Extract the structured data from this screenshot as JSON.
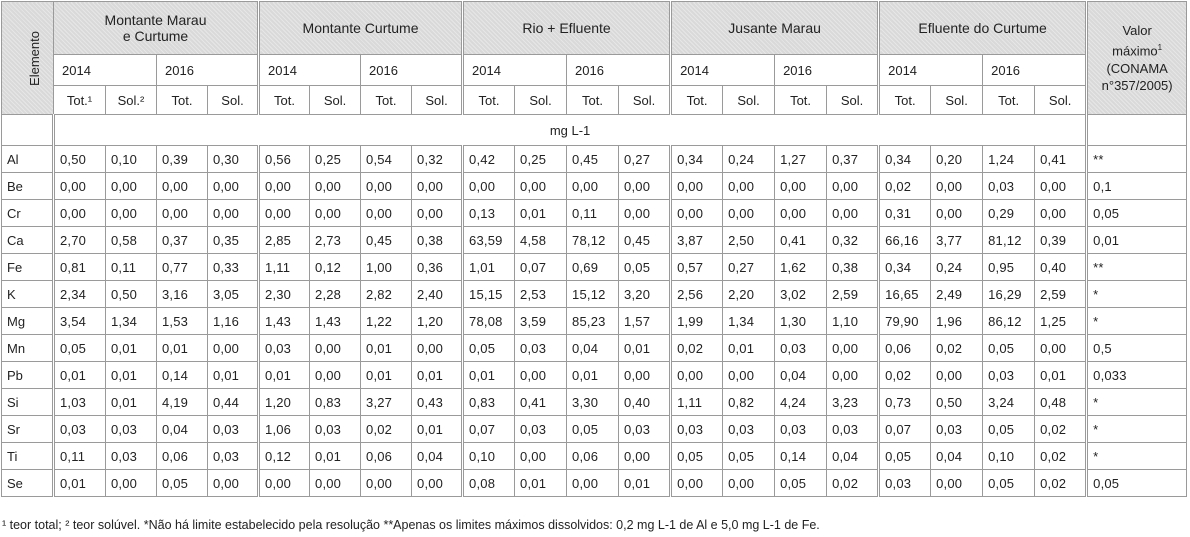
{
  "header": {
    "element": "Elemento",
    "groups": [
      {
        "l1": "Montante Marau",
        "l2": "e Curtume"
      },
      {
        "l1": "Montante Curtume"
      },
      {
        "l1": "Rio + Efluente"
      },
      {
        "l1": "Jusante Marau"
      },
      {
        "l1": "Efluente do Curtume"
      }
    ],
    "years": [
      "2014",
      "2016"
    ],
    "subs_first": [
      "Tot.¹",
      "Sol.²",
      "Tot.",
      "Sol."
    ],
    "subs": [
      "Tot.",
      "Sol.",
      "Tot.",
      "Sol."
    ],
    "max": {
      "l1": "Valor",
      "l2": "máximo",
      "sup": "1",
      "l3": "(CONAMA",
      "l4": "n°357/2005)"
    }
  },
  "unit": "mg L-1",
  "rows": [
    {
      "el": "Al",
      "v": [
        "0,50",
        "0,10",
        "0,39",
        "0,30",
        "0,56",
        "0,25",
        "0,54",
        "0,32",
        "0,42",
        "0,25",
        "0,45",
        "0,27",
        "0,34",
        "0,24",
        "1,27",
        "0,37",
        "0,34",
        "0,20",
        "1,24",
        "0,41"
      ],
      "max": "**"
    },
    {
      "el": "Be",
      "v": [
        "0,00",
        "0,00",
        "0,00",
        "0,00",
        "0,00",
        "0,00",
        "0,00",
        "0,00",
        "0,00",
        "0,00",
        "0,00",
        "0,00",
        "0,00",
        "0,00",
        "0,00",
        "0,00",
        "0,02",
        "0,00",
        "0,03",
        "0,00"
      ],
      "max": "0,1"
    },
    {
      "el": "Cr",
      "v": [
        "0,00",
        "0,00",
        "0,00",
        "0,00",
        "0,00",
        "0,00",
        "0,00",
        "0,00",
        "0,13",
        "0,01",
        "0,11",
        "0,00",
        "0,00",
        "0,00",
        "0,00",
        "0,00",
        "0,31",
        "0,00",
        "0,29",
        "0,00"
      ],
      "max": "0,05"
    },
    {
      "el": "Ca",
      "v": [
        "2,70",
        "0,58",
        "0,37",
        "0,35",
        "2,85",
        "2,73",
        "0,45",
        "0,38",
        "63,59",
        "4,58",
        "78,12",
        "0,45",
        "3,87",
        "2,50",
        "0,41",
        "0,32",
        "66,16",
        "3,77",
        "81,12",
        "0,39"
      ],
      "max": "0,01"
    },
    {
      "el": "Fe",
      "v": [
        "0,81",
        "0,11",
        "0,77",
        "0,33",
        "1,11",
        "0,12",
        "1,00",
        "0,36",
        "1,01",
        "0,07",
        "0,69",
        "0,05",
        "0,57",
        "0,27",
        "1,62",
        "0,38",
        "0,34",
        "0,24",
        "0,95",
        "0,40"
      ],
      "max": "**"
    },
    {
      "el": "K",
      "v": [
        "2,34",
        "0,50",
        "3,16",
        "3,05",
        "2,30",
        "2,28",
        "2,82",
        "2,40",
        "15,15",
        "2,53",
        "15,12",
        "3,20",
        "2,56",
        "2,20",
        "3,02",
        "2,59",
        "16,65",
        "2,49",
        "16,29",
        "2,59"
      ],
      "max": "*"
    },
    {
      "el": "Mg",
      "v": [
        "3,54",
        "1,34",
        "1,53",
        "1,16",
        "1,43",
        "1,43",
        "1,22",
        "1,20",
        "78,08",
        "3,59",
        "85,23",
        "1,57",
        "1,99",
        "1,34",
        "1,30",
        "1,10",
        "79,90",
        "1,96",
        "86,12",
        "1,25"
      ],
      "max": "*"
    },
    {
      "el": "Mn",
      "v": [
        "0,05",
        "0,01",
        "0,01",
        "0,00",
        "0,03",
        "0,00",
        "0,01",
        "0,00",
        "0,05",
        "0,03",
        "0,04",
        "0,01",
        "0,02",
        "0,01",
        "0,03",
        "0,00",
        "0,06",
        "0,02",
        "0,05",
        "0,00"
      ],
      "max": "0,5"
    },
    {
      "el": "Pb",
      "v": [
        "0,01",
        "0,01",
        "0,14",
        "0,01",
        "0,01",
        "0,00",
        "0,01",
        "0,01",
        "0,01",
        "0,00",
        "0,01",
        "0,00",
        "0,00",
        "0,00",
        "0,04",
        "0,00",
        "0,02",
        "0,00",
        "0,03",
        "0,01"
      ],
      "max": "0,033"
    },
    {
      "el": "Si",
      "v": [
        "1,03",
        "0,01",
        "4,19",
        "0,44",
        "1,20",
        "0,83",
        "3,27",
        "0,43",
        "0,83",
        "0,41",
        "3,30",
        "0,40",
        "1,11",
        "0,82",
        "4,24",
        "3,23",
        "0,73",
        "0,50",
        "3,24",
        "0,48"
      ],
      "max": "*"
    },
    {
      "el": "Sr",
      "v": [
        "0,03",
        "0,03",
        "0,04",
        "0,03",
        "1,06",
        "0,03",
        "0,02",
        "0,01",
        "0,07",
        "0,03",
        "0,05",
        "0,03",
        "0,03",
        "0,03",
        "0,03",
        "0,03",
        "0,07",
        "0,03",
        "0,05",
        "0,02"
      ],
      "max": "*"
    },
    {
      "el": "Ti",
      "v": [
        "0,11",
        "0,03",
        "0,06",
        "0,03",
        "0,12",
        "0,01",
        "0,06",
        "0,04",
        "0,10",
        "0,00",
        "0,06",
        "0,00",
        "0,05",
        "0,05",
        "0,14",
        "0,04",
        "0,05",
        "0,04",
        "0,10",
        "0,02"
      ],
      "max": "*"
    },
    {
      "el": "Se",
      "v": [
        "0,01",
        "0,00",
        "0,05",
        "0,00",
        "0,00",
        "0,00",
        "0,00",
        "0,00",
        "0,08",
        "0,01",
        "0,00",
        "0,01",
        "0,00",
        "0,00",
        "0,05",
        "0,02",
        "0,03",
        "0,00",
        "0,05",
        "0,02"
      ],
      "max": "0,05"
    }
  ],
  "footnote": "¹ teor total; ² teor solúvel. *Não há limite estabelecido pela resolução **Apenas os limites máximos dissolvidos: 0,2 mg L-1 de Al e 5,0 mg L-1 de Fe."
}
